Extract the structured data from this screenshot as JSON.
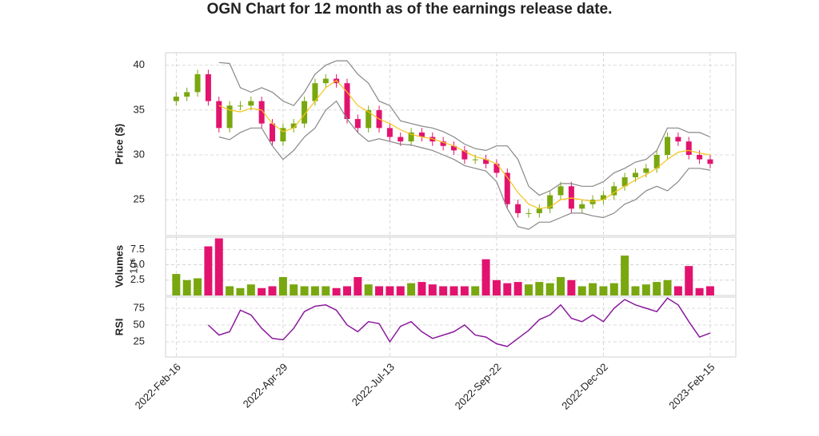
{
  "chart_data": {
    "type": "candlestick",
    "title": "OGN Chart for 12 month as of the earnings release date.",
    "x": [
      0,
      5,
      10,
      15,
      20,
      25,
      30,
      35,
      40,
      45,
      50,
      55,
      60,
      65,
      70,
      75,
      80,
      85,
      90,
      95,
      100,
      105,
      110,
      115,
      120,
      125,
      130,
      135,
      140,
      145,
      150,
      155,
      160,
      165,
      170,
      175,
      180,
      185,
      190,
      195,
      200,
      205,
      210,
      215,
      220,
      225,
      230,
      235,
      240,
      245,
      250
    ],
    "xlim": [
      -5,
      262
    ],
    "xticks": [
      {
        "value": 0,
        "label": "2022-Feb-16"
      },
      {
        "value": 50,
        "label": "2022-Apr-29"
      },
      {
        "value": 100,
        "label": "2022-Jul-13"
      },
      {
        "value": 150,
        "label": "2022-Sep-22"
      },
      {
        "value": 200,
        "label": "2022-Dec-02"
      },
      {
        "value": 250,
        "label": "2023-Feb-15"
      }
    ],
    "open": [
      36,
      36.5,
      37,
      39,
      36,
      33,
      35.5,
      35.5,
      36,
      33.5,
      31.5,
      33,
      33.5,
      36,
      38,
      38.5,
      38,
      34,
      33,
      35,
      33,
      32,
      31.5,
      32.5,
      32,
      31.5,
      31,
      30.5,
      29.5,
      29.5,
      29,
      28,
      24.5,
      23.5,
      23.5,
      24,
      25.5,
      26.5,
      24,
      24.5,
      25,
      25.5,
      26.5,
      27.5,
      28,
      28.5,
      30,
      32,
      31.5,
      30,
      29.5
    ],
    "high": [
      37,
      37.5,
      39.5,
      39.5,
      36.5,
      36,
      36,
      36.5,
      36.5,
      34,
      33.5,
      34,
      36.5,
      38.5,
      39,
      39,
      38.5,
      34.5,
      35.5,
      35.5,
      33.5,
      32.5,
      33,
      33,
      32.5,
      32,
      31.5,
      31,
      30,
      30,
      29.5,
      28.5,
      25,
      24,
      24.5,
      26,
      27,
      27,
      25,
      25.5,
      26,
      27,
      28,
      28.5,
      29,
      30.5,
      32.5,
      32.5,
      32,
      30.5,
      30
    ],
    "low": [
      35.5,
      36,
      36.5,
      35.5,
      32.5,
      32.5,
      35,
      35,
      33,
      31,
      31,
      32.5,
      33,
      35.5,
      37.5,
      37.5,
      33.5,
      32.5,
      32.5,
      32.5,
      31.5,
      31,
      31,
      31.5,
      31,
      30.5,
      30,
      29,
      29,
      28.5,
      27.5,
      24,
      23,
      23,
      23,
      23.5,
      25,
      23.5,
      23.5,
      24,
      24.5,
      25,
      26,
      27,
      27.5,
      28,
      29.5,
      31,
      29.5,
      29,
      28.5
    ],
    "close": [
      36.5,
      37,
      39,
      36,
      33,
      35.5,
      35.5,
      36,
      33.5,
      31.5,
      33,
      33.5,
      36,
      38,
      38.5,
      38,
      34,
      33,
      35,
      33,
      32,
      31.5,
      32.5,
      32,
      31.5,
      31,
      30.5,
      29.5,
      29.5,
      29,
      28,
      24.5,
      23.5,
      23.5,
      24,
      25.5,
      26.5,
      24,
      24.5,
      25,
      25.5,
      26.5,
      27.5,
      28,
      28.5,
      30,
      32,
      31.5,
      30,
      29.5,
      29
    ],
    "up_color": "#79a70f",
    "down_color": "#e2136e",
    "ylabel": "Price ($)",
    "ylim": [
      21,
      41.4
    ],
    "yticks": [
      25,
      30,
      35,
      40
    ],
    "grid": true,
    "series": [
      {
        "color": "#f5c518",
        "values": [
          null,
          null,
          null,
          null,
          35.5,
          35,
          34.8,
          35.2,
          35,
          33.5,
          32.6,
          33,
          34.5,
          36,
          37.5,
          38.3,
          37,
          35.5,
          34.8,
          34,
          33.5,
          32.8,
          32.3,
          32,
          31.8,
          31.4,
          31,
          30.4,
          29.8,
          29.5,
          29,
          27.5,
          25.8,
          24.5,
          24,
          24.2,
          25,
          25.2,
          25,
          24.8,
          25,
          25.8,
          26.5,
          27.2,
          27.8,
          28.5,
          29.5,
          30.3,
          30.5,
          30.2,
          30
        ]
      },
      {
        "color": "#888888",
        "values": [
          null,
          null,
          null,
          null,
          40.3,
          40.2,
          37.5,
          37,
          37.5,
          37,
          36,
          35.5,
          37,
          39,
          40,
          40.5,
          40.5,
          39,
          38,
          36,
          35.5,
          33.8,
          33.5,
          33.2,
          33,
          32.6,
          32,
          31.2,
          30.7,
          30.5,
          31,
          31,
          29.5,
          26.5,
          25.5,
          26,
          26.8,
          26.8,
          26.5,
          26.5,
          27,
          28,
          28.5,
          29.2,
          29.5,
          30.5,
          33,
          33,
          32.5,
          32.5,
          32
        ]
      },
      {
        "color": "#888888",
        "values": [
          null,
          null,
          null,
          null,
          32,
          31.7,
          32.5,
          33,
          33,
          31,
          29.5,
          30.5,
          32,
          33,
          35,
          36,
          34,
          32.5,
          31.5,
          31.8,
          31.5,
          31.2,
          31.1,
          30.8,
          30.5,
          30,
          29.5,
          28.8,
          28.5,
          28.2,
          27,
          24,
          22,
          21.7,
          22.5,
          22.5,
          23,
          23.5,
          23.5,
          23.2,
          23,
          23.5,
          24.5,
          25,
          26,
          26.5,
          26,
          27,
          28.5,
          28.5,
          28.3
        ]
      }
    ],
    "volume": {
      "ylabel": "Volumes",
      "offset_label": "10⁶",
      "ylim": [
        0,
        9.5
      ],
      "yticks": [
        2.5,
        {
          "value": 5,
          "label": "5.0"
        },
        7.5
      ],
      "values": [
        3.5,
        2.5,
        2.8,
        8,
        9.3,
        1.5,
        1.2,
        1.8,
        1.2,
        1.5,
        3,
        1.8,
        1.5,
        1.5,
        1.5,
        1.2,
        1.5,
        3,
        1.8,
        1.5,
        1.5,
        1.5,
        2,
        2.2,
        1.8,
        1.5,
        1.5,
        1.5,
        1.5,
        5.9,
        2.5,
        2,
        2.2,
        1.8,
        2.2,
        2,
        3,
        2.5,
        1.5,
        2,
        1.5,
        2,
        6.5,
        1.5,
        1.8,
        2.2,
        2.5,
        1.5,
        4.8,
        1.2,
        1.5
      ]
    },
    "rsi": {
      "ylabel": "RSI",
      "color": "#8b1a9e",
      "ylim": [
        2.4,
        91.7
      ],
      "yticks": [
        25,
        50,
        75
      ],
      "values": [
        null,
        null,
        null,
        50,
        35,
        40,
        72,
        65,
        45,
        30,
        28,
        45,
        70,
        78,
        80,
        72,
        50,
        40,
        55,
        52,
        25,
        48,
        55,
        40,
        30,
        35,
        40,
        50,
        35,
        32,
        22,
        18,
        30,
        42,
        58,
        65,
        80,
        60,
        55,
        65,
        55,
        75,
        88,
        80,
        75,
        70,
        90,
        80,
        55,
        32,
        38
      ]
    }
  }
}
